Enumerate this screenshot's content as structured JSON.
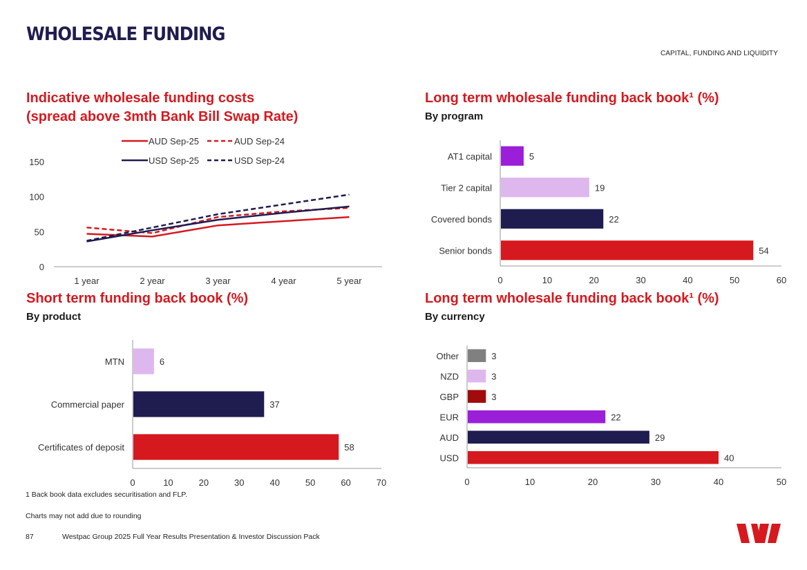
{
  "header": {
    "title": "WHOLESALE FUNDING",
    "section": "CAPITAL, FUNDING AND LIQUIDITY"
  },
  "charts": {
    "costs": {
      "title_line1": "Indicative wholesale funding costs",
      "title_line2": "(spread above 3mth Bank Bill Swap Rate)"
    },
    "program": {
      "title": "Long term wholesale funding back book¹ (%)",
      "subtitle": "By program"
    },
    "short_term": {
      "title": "Short term funding back book (%)",
      "subtitle": "By product"
    },
    "currency": {
      "title": "Long term wholesale funding back book¹ (%)",
      "subtitle": "By currency"
    }
  },
  "chart_data": [
    {
      "id": "costs",
      "type": "line",
      "x": [
        "1 year",
        "2 year",
        "3 year",
        "4 year",
        "5 year"
      ],
      "ylim": [
        0,
        150
      ],
      "yticks": [
        0,
        50,
        100,
        150
      ],
      "series": [
        {
          "name": "AUD Sep-25",
          "values": [
            47,
            43,
            59,
            65,
            71
          ],
          "color": "#d5191f",
          "dash": false
        },
        {
          "name": "AUD Sep-24",
          "values": [
            56,
            48,
            71,
            79,
            84
          ],
          "color": "#d5191f",
          "dash": true
        },
        {
          "name": "USD Sep-25",
          "values": [
            36,
            52,
            67,
            77,
            86
          ],
          "color": "#1f1c4f",
          "dash": false
        },
        {
          "name": "USD Sep-24",
          "values": [
            37,
            56,
            75,
            89,
            103
          ],
          "color": "#1f1c4f",
          "dash": true
        }
      ],
      "legend": "top"
    },
    {
      "id": "program",
      "type": "bar",
      "orientation": "horizontal",
      "categories": [
        "AT1 capital",
        "Tier 2 capital",
        "Covered bonds",
        "Senior bonds"
      ],
      "values": [
        5,
        19,
        22,
        54
      ],
      "colors": [
        "#9b1fd8",
        "#dfb7ef",
        "#1f1c4f",
        "#d5191f"
      ],
      "xlim": [
        0,
        60
      ],
      "xticks": [
        0,
        10,
        20,
        30,
        40,
        50,
        60
      ]
    },
    {
      "id": "short_term",
      "type": "bar",
      "orientation": "horizontal",
      "categories": [
        "MTN",
        "Commercial paper",
        "Certificates of deposit"
      ],
      "values": [
        6,
        37,
        58
      ],
      "colors": [
        "#dfb7ef",
        "#1f1c4f",
        "#d5191f"
      ],
      "xlim": [
        0,
        70
      ],
      "xticks": [
        0,
        10,
        20,
        30,
        40,
        50,
        60,
        70
      ]
    },
    {
      "id": "currency",
      "type": "bar",
      "orientation": "horizontal",
      "categories": [
        "Other",
        "NZD",
        "GBP",
        "EUR",
        "AUD",
        "USD"
      ],
      "values": [
        3,
        3,
        3,
        22,
        29,
        40
      ],
      "colors": [
        "#808080",
        "#dfb7ef",
        "#a00c0c",
        "#9b1fd8",
        "#1f1c4f",
        "#d5191f"
      ],
      "xlim": [
        0,
        50
      ],
      "xticks": [
        0,
        10,
        20,
        30,
        40,
        50
      ]
    }
  ],
  "footer": {
    "footnote": "1 Back book data excludes securitisation and FLP.",
    "note": "Charts may not add due to rounding",
    "page_number": "87",
    "document": "Westpac Group 2025 Full Year Results Presentation & Investor Discussion Pack"
  },
  "brand": {
    "logo": "westpac-logo",
    "color": "#d5191f"
  }
}
